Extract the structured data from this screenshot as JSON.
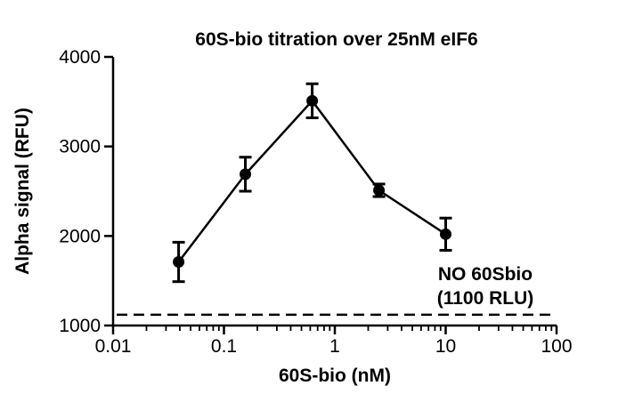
{
  "chart_data": {
    "type": "line",
    "title": "60S-bio titration over 25nM eIF6",
    "xlabel": "60S-bio (nM)",
    "ylabel": "Alpha signal (RFU)",
    "x_scale": "log",
    "xlim": [
      0.01,
      100
    ],
    "ylim": [
      1000,
      4000
    ],
    "x_ticks": [
      0.01,
      0.1,
      1,
      10,
      100
    ],
    "x_tick_labels": [
      "0.01",
      "0.1",
      "1",
      "10",
      "100"
    ],
    "y_ticks": [
      1000,
      2000,
      3000,
      4000
    ],
    "y_tick_labels": [
      "1000",
      "2000",
      "3000",
      "4000"
    ],
    "grid": false,
    "legend": "none",
    "series": [
      {
        "x": [
          0.039,
          0.156,
          0.625,
          2.5,
          10
        ],
        "y": [
          1710,
          2690,
          3510,
          2510,
          2020
        ],
        "err": [
          220,
          190,
          190,
          70,
          180
        ],
        "color": "#000000"
      }
    ],
    "reference_line": {
      "y": 1120,
      "style": "dashed",
      "label_line1": "NO 60Sbio",
      "label_line2": "(1100 RLU)"
    }
  }
}
